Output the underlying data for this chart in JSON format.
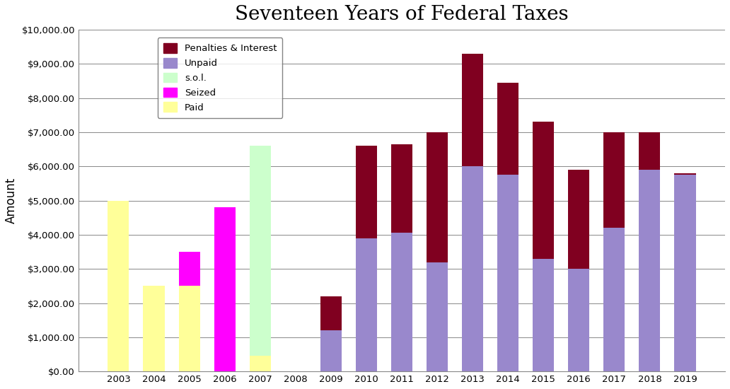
{
  "title": "Seventeen Years of Federal Taxes",
  "ylabel": "Amount",
  "years": [
    "2003",
    "2004",
    "2005",
    "2006",
    "2007",
    "2008",
    "2009",
    "2010",
    "2011",
    "2012",
    "2013",
    "2014",
    "2015",
    "2016",
    "2017",
    "2018",
    "2019"
  ],
  "paid": [
    5000,
    2500,
    2500,
    0,
    450,
    0,
    0,
    0,
    0,
    0,
    0,
    0,
    0,
    0,
    0,
    0,
    0
  ],
  "seized": [
    0,
    0,
    1000,
    4800,
    0,
    0,
    0,
    0,
    0,
    0,
    0,
    0,
    0,
    0,
    0,
    0,
    0
  ],
  "sol": [
    0,
    0,
    0,
    0,
    6150,
    0,
    0,
    0,
    0,
    0,
    0,
    0,
    0,
    0,
    0,
    0,
    0
  ],
  "unpaid": [
    0,
    0,
    0,
    0,
    0,
    0,
    1200,
    3900,
    4050,
    3200,
    6000,
    5750,
    3300,
    3000,
    4200,
    5900,
    5750
  ],
  "penalties": [
    0,
    0,
    0,
    0,
    0,
    0,
    1000,
    2700,
    2600,
    3800,
    3300,
    2700,
    4000,
    2900,
    2800,
    1100,
    50
  ],
  "color_paid": "#ffff99",
  "color_seized": "#ff00ff",
  "color_sol": "#ccffcc",
  "color_unpaid": "#9988cc",
  "color_penalties": "#800020",
  "ylim": [
    0,
    10000
  ],
  "yticks": [
    0,
    1000,
    2000,
    3000,
    4000,
    5000,
    6000,
    7000,
    8000,
    9000,
    10000
  ],
  "background_color": "#ffffff",
  "figsize": [
    10.32,
    5.5
  ],
  "dpi": 100
}
